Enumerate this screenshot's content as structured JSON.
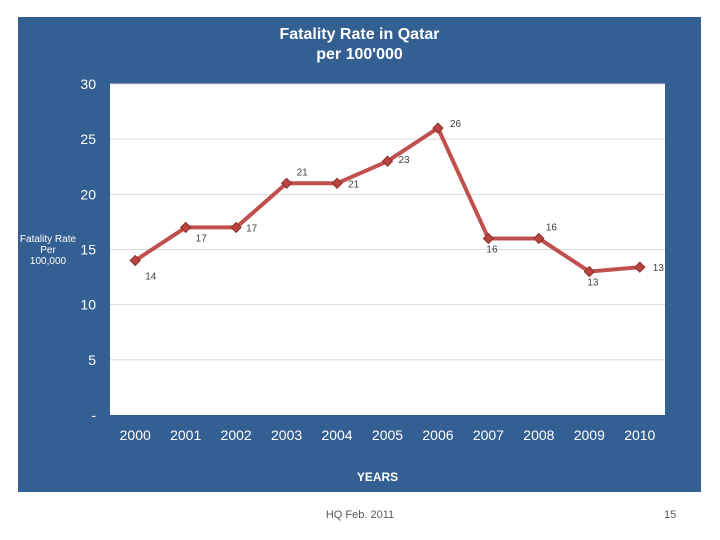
{
  "slide": {
    "footer": "HQ Feb. 2011",
    "page_number": "15",
    "panel_color": "#345f92",
    "plot_background": "#ffffff"
  },
  "chart_data": {
    "type": "line",
    "title_line1": "Fatality Rate in Qatar",
    "title_line2": "per 100'000",
    "xlabel": "YEARS",
    "ylabel": [
      "Fatality Rate",
      "Per",
      "100,000"
    ],
    "categories": [
      "2000",
      "2001",
      "2002",
      "2003",
      "2004",
      "2005",
      "2006",
      "2007",
      "2008",
      "2009",
      "2010"
    ],
    "series": [
      {
        "values": [
          14,
          17,
          17,
          21,
          21,
          23,
          26,
          16,
          16,
          13,
          13.4
        ],
        "labels": [
          "14",
          "17",
          "17",
          "21",
          "21",
          "23",
          "26",
          "16",
          "16",
          "13",
          "13"
        ],
        "color": "#c0504d"
      }
    ],
    "ylim": [
      0,
      30
    ],
    "yticks": [
      0,
      5,
      10,
      15,
      20,
      25,
      30
    ],
    "ytick_labels": [
      "-",
      "5",
      "10",
      "15",
      "20",
      "25",
      "30"
    ],
    "grid": true,
    "legend": "none"
  }
}
